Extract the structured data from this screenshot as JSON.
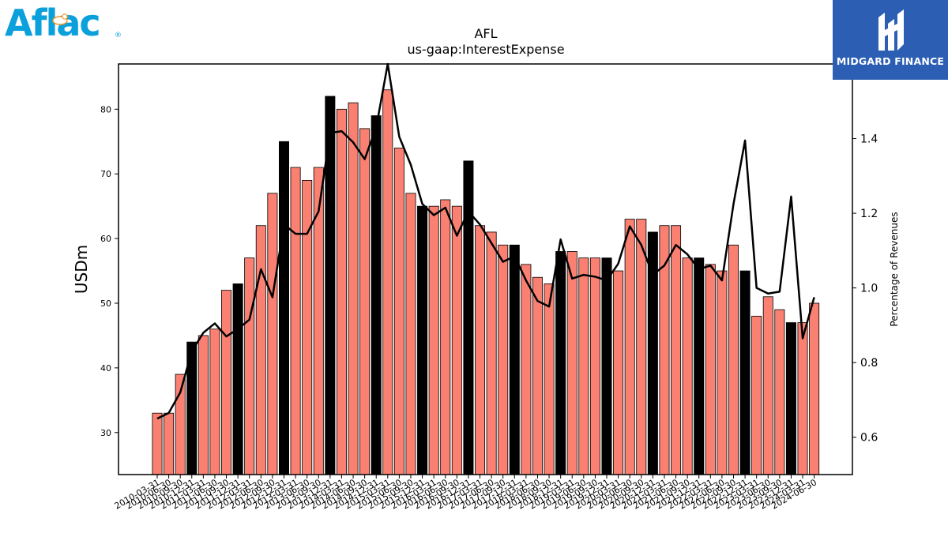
{
  "logos": {
    "left": {
      "text": "Aflac",
      "reg_mark": "®"
    },
    "right": {
      "text": "MIDGARD FINANCE"
    }
  },
  "colors": {
    "bar_default": "#fa8072",
    "bar_highlight": "#000000",
    "line": "#000000"
  },
  "chart_data": {
    "type": "bar",
    "title": "AFL",
    "subtitle": "us-gaap:InterestExpense",
    "ylabel": "USDm",
    "y2label": "Percentage of Revenues",
    "ylim": [
      23.5,
      87
    ],
    "y2lim": [
      0.5,
      1.6
    ],
    "yticks": [
      30,
      40,
      50,
      60,
      70,
      80
    ],
    "y2ticks": [
      "0.6",
      "0.8",
      "1.0",
      "1.2",
      "1.4"
    ],
    "categories": [
      "2010-03-31",
      "2010-06-30",
      "2010-09-30",
      "2010-12-31",
      "2011-03-31",
      "2011-06-30",
      "2011-09-30",
      "2011-12-31",
      "2012-03-31",
      "2012-06-30",
      "2012-09-30",
      "2012-12-31",
      "2013-03-31",
      "2013-06-30",
      "2013-09-30",
      "2013-12-31",
      "2014-03-31",
      "2014-06-30",
      "2014-09-30",
      "2014-12-31",
      "2015-03-31",
      "2015-06-30",
      "2015-09-30",
      "2015-12-31",
      "2016-03-31",
      "2016-06-30",
      "2016-09-30",
      "2016-12-31",
      "2017-03-31",
      "2017-06-30",
      "2017-09-30",
      "2017-12-31",
      "2018-03-31",
      "2018-06-30",
      "2018-09-30",
      "2018-12-31",
      "2019-03-31",
      "2019-06-30",
      "2019-09-30",
      "2019-12-31",
      "2020-03-31",
      "2020-06-30",
      "2020-09-30",
      "2020-12-31",
      "2021-03-31",
      "2021-06-30",
      "2021-09-30",
      "2021-12-31",
      "2022-03-31",
      "2022-06-30",
      "2022-09-30",
      "2022-12-31",
      "2023-03-31",
      "2023-06-30",
      "2023-09-30",
      "2023-12-31",
      "2024-03-31",
      "2024-06-30"
    ],
    "series": [
      {
        "type": "bar",
        "values": [
          33,
          33,
          39,
          44,
          45,
          46,
          52,
          53,
          57,
          62,
          67,
          75,
          71,
          69,
          71,
          82,
          80,
          81,
          77,
          79,
          83,
          74,
          67,
          65,
          65,
          66,
          65,
          72,
          62,
          61,
          59,
          59,
          56,
          54,
          53,
          58,
          58,
          57,
          57,
          57,
          55,
          63,
          63,
          61,
          62,
          62,
          57,
          57,
          56,
          55,
          59,
          55,
          48,
          51,
          49,
          47,
          47,
          50
        ],
        "highlight_every": 4,
        "highlight_offset": 3
      },
      {
        "type": "line",
        "axis": "right",
        "values": [
          0.65,
          0.665,
          0.72,
          0.83,
          0.88,
          0.905,
          0.87,
          0.89,
          0.915,
          1.05,
          0.975,
          1.17,
          1.145,
          1.145,
          1.205,
          1.415,
          1.42,
          1.39,
          1.345,
          1.43,
          1.6,
          1.405,
          1.33,
          1.225,
          1.195,
          1.215,
          1.14,
          1.205,
          1.17,
          1.12,
          1.07,
          1.085,
          1.02,
          0.965,
          0.95,
          1.13,
          1.025,
          1.035,
          1.03,
          1.02,
          1.065,
          1.165,
          1.115,
          1.035,
          1.06,
          1.115,
          1.09,
          1.05,
          1.06,
          1.02,
          1.225,
          1.395,
          1.0,
          0.985,
          0.99,
          1.245,
          0.865,
          0.975
        ]
      }
    ]
  }
}
